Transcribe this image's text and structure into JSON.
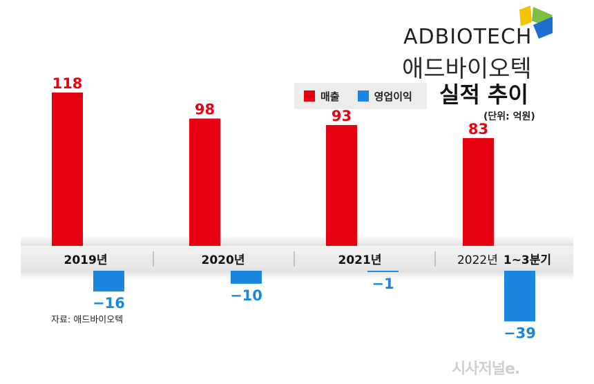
{
  "brand": {
    "wordmark": "ADBIOTECH",
    "company_kor": "애드바이오텍",
    "logo_colors": [
      "#f3c300",
      "#7bc043",
      "#1c6fd1",
      "#2f8fe8"
    ]
  },
  "title": "실적 추이",
  "unit": "(단위: 억원)",
  "source": "자료: 애드바이오텍",
  "watermark": "시사저널e.",
  "legend": [
    {
      "name": "매출",
      "color": "#e50012"
    },
    {
      "name": "영업이익",
      "color": "#1a86e0"
    }
  ],
  "chart_data": {
    "type": "bar",
    "categories": [
      {
        "main": "2019년",
        "suffix": ""
      },
      {
        "main": "2020년",
        "suffix": ""
      },
      {
        "main": "2021년",
        "suffix": ""
      },
      {
        "main": "2022년",
        "suffix": "1~3분기"
      }
    ],
    "series": [
      {
        "name": "매출",
        "color": "#e50012",
        "values": [
          118,
          98,
          93,
          83
        ],
        "labels": [
          "118",
          "98",
          "93",
          "83"
        ]
      },
      {
        "name": "영업이익",
        "color": "#1a86e0",
        "values": [
          -16,
          -10,
          -1,
          -39
        ],
        "labels": [
          "−16",
          "−10",
          "−1",
          "−39"
        ]
      }
    ],
    "ylim": [
      -39,
      118
    ]
  }
}
